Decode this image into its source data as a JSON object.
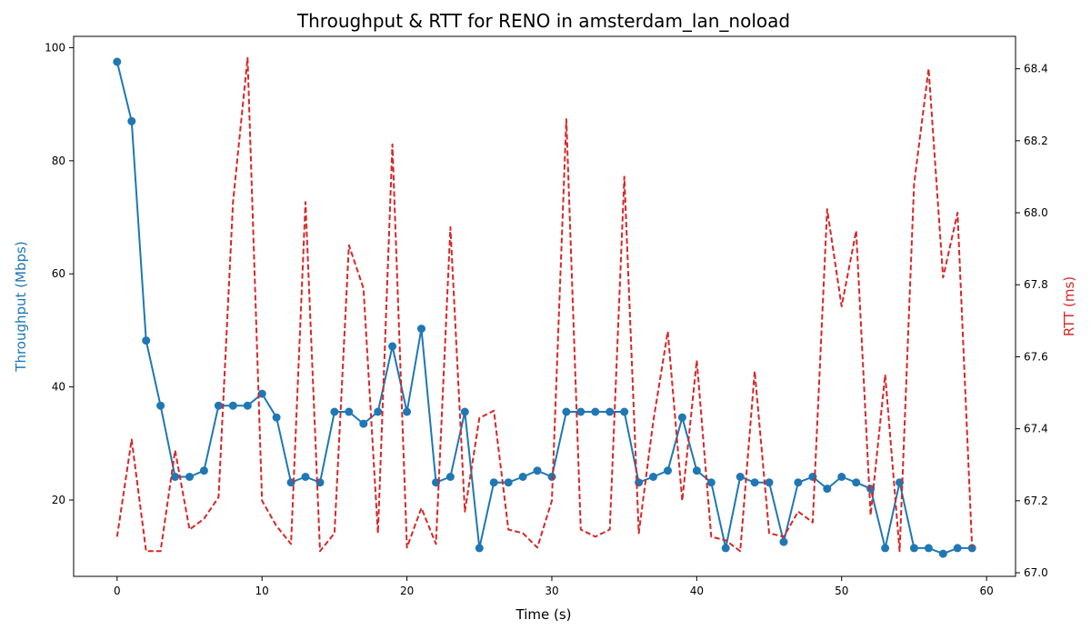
{
  "chart_data": {
    "type": "line",
    "title": "Throughput & RTT for RENO in amsterdam_lan_noload",
    "xlabel": "Time (s)",
    "ylabel_left": "Throughput (Mbps)",
    "ylabel_right": "RTT (ms)",
    "xlim": [
      -3,
      62
    ],
    "ylim_left": [
      6.5,
      102
    ],
    "ylim_right": [
      66.99,
      68.49
    ],
    "x_ticks": [
      0,
      10,
      20,
      30,
      40,
      50,
      60
    ],
    "y_ticks_left": [
      20,
      40,
      60,
      80,
      100
    ],
    "y_ticks_right": [
      67.0,
      67.2,
      67.4,
      67.6,
      67.8,
      68.0,
      68.2,
      68.4
    ],
    "x_tick_labels": [
      "0",
      "10",
      "20",
      "30",
      "40",
      "50",
      "60"
    ],
    "y_tick_labels_left": [
      "20",
      "40",
      "60",
      "80",
      "100"
    ],
    "y_tick_labels_right": [
      "67.0",
      "67.2",
      "67.4",
      "67.6",
      "67.8",
      "68.0",
      "68.2",
      "68.4"
    ],
    "grid": false,
    "colors": {
      "throughput": "#1f77b4",
      "rtt": "#d62728"
    },
    "series": [
      {
        "axis": "left",
        "style": "solid-marker",
        "x": [
          0,
          1,
          2,
          3,
          4,
          5,
          6,
          7,
          8,
          9,
          10,
          11,
          12,
          13,
          14,
          15,
          16,
          17,
          18,
          19,
          20,
          21,
          22,
          23,
          24,
          25,
          26,
          27,
          28,
          29,
          30,
          31,
          32,
          33,
          34,
          35,
          36,
          37,
          38,
          39,
          40,
          41,
          42,
          43,
          44,
          45,
          46,
          47,
          48,
          49,
          50,
          51,
          52,
          53,
          54,
          55,
          56,
          57,
          58,
          59
        ],
        "values": [
          97.5,
          87.0,
          48.2,
          36.7,
          24.1,
          24.1,
          25.2,
          36.7,
          36.7,
          36.7,
          38.8,
          34.6,
          23.1,
          24.1,
          23.1,
          35.6,
          35.6,
          33.5,
          35.6,
          47.2,
          35.6,
          50.3,
          23.1,
          24.1,
          35.6,
          11.5,
          23.1,
          23.1,
          24.1,
          25.2,
          24.1,
          35.6,
          35.6,
          35.6,
          35.6,
          35.6,
          23.1,
          24.1,
          25.2,
          34.6,
          25.2,
          23.1,
          11.5,
          24.1,
          23.1,
          23.1,
          12.6,
          23.1,
          24.1,
          22.0,
          24.1,
          23.1,
          22.0,
          11.5,
          23.1,
          11.5,
          11.5,
          10.5,
          11.5,
          11.5
        ]
      },
      {
        "axis": "right",
        "style": "dashed",
        "x": [
          0,
          1,
          2,
          3,
          4,
          5,
          6,
          7,
          8,
          9,
          10,
          11,
          12,
          13,
          14,
          15,
          16,
          17,
          18,
          19,
          20,
          21,
          22,
          23,
          24,
          25,
          26,
          27,
          28,
          29,
          30,
          31,
          32,
          33,
          34,
          35,
          36,
          37,
          38,
          39,
          40,
          41,
          42,
          43,
          44,
          45,
          46,
          47,
          48,
          49,
          50,
          51,
          52,
          53,
          54,
          55,
          56,
          57,
          58,
          59
        ],
        "values": [
          67.1,
          67.37,
          67.06,
          67.06,
          67.34,
          67.12,
          67.15,
          67.21,
          68.03,
          68.43,
          67.2,
          67.13,
          67.08,
          68.03,
          67.06,
          67.11,
          67.91,
          67.79,
          67.11,
          68.19,
          67.07,
          67.18,
          67.08,
          67.96,
          67.17,
          67.43,
          67.45,
          67.12,
          67.11,
          67.07,
          67.2,
          68.26,
          67.12,
          67.1,
          67.12,
          68.1,
          67.11,
          67.42,
          67.67,
          67.2,
          67.59,
          67.1,
          67.09,
          67.06,
          67.56,
          67.11,
          67.1,
          67.17,
          67.14,
          68.01,
          67.74,
          67.95,
          67.16,
          67.55,
          67.06,
          68.08,
          68.4,
          67.82,
          68.0,
          67.07
        ]
      }
    ]
  }
}
